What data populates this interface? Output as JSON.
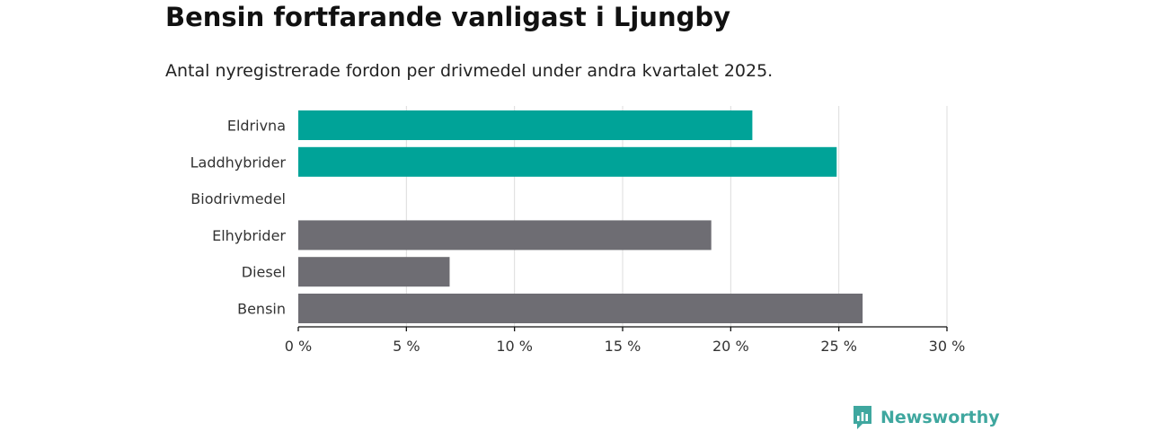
{
  "brand": {
    "name": "Newsworthy",
    "color": "#3fa79f"
  },
  "chart_data": {
    "type": "bar",
    "orientation": "horizontal",
    "title": "Bensin fortfarande vanligast i Ljungby",
    "subtitle": "Antal nyregistrerade fordon per drivmedel under andra kvartalet 2025.",
    "categories": [
      "Eldrivna",
      "Laddhybrider",
      "Biodrivmedel",
      "Elhybrider",
      "Diesel",
      "Bensin"
    ],
    "values": [
      21.0,
      24.9,
      0,
      19.1,
      7.0,
      26.1
    ],
    "colors": [
      "#00a398",
      "#00a398",
      "#00a398",
      "#6e6d73",
      "#6e6d73",
      "#6e6d73"
    ],
    "xlim": [
      0,
      30
    ],
    "xticks": [
      0,
      5,
      10,
      15,
      20,
      25,
      30
    ],
    "xtick_labels": [
      "0 %",
      "5 %",
      "10 %",
      "15 %",
      "20 %",
      "25 %",
      "30 %"
    ],
    "grid": true,
    "legend": "none"
  }
}
